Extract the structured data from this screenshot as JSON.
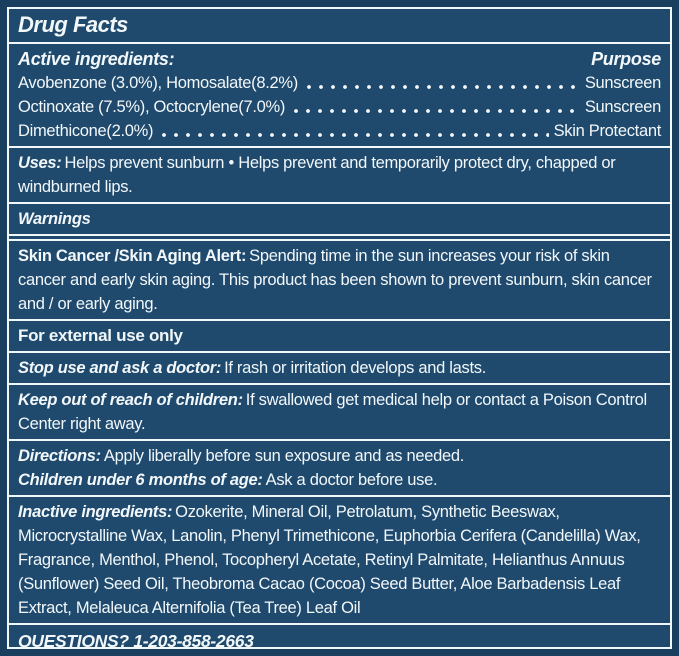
{
  "label": {
    "title": "Drug Facts",
    "active": {
      "header": "Active ingredients:",
      "purpose_header": "Purpose",
      "rows": [
        {
          "ingredient": "Avobenzone (3.0%), Homosalate(8.2%)",
          "purpose": "Sunscreen"
        },
        {
          "ingredient": "Octinoxate (7.5%), Octocrylene(7.0%)",
          "purpose": "Sunscreen"
        },
        {
          "ingredient": "Dimethicone(2.0%)",
          "purpose": "Skin Protectant"
        }
      ]
    },
    "uses": {
      "lead": "Uses:",
      "text": "Helps prevent sunburn • Helps prevent and temporarily protect dry, chapped or windburned lips."
    },
    "warnings_header": "Warnings",
    "skin_alert": {
      "lead": "Skin Cancer /Skin Aging Alert:",
      "text": "Spending time in the sun increases your risk of skin cancer and early skin aging. This product has been shown to prevent sunburn, skin cancer and / or early aging."
    },
    "external_use": "For external use only",
    "stop_use": {
      "lead": "Stop use and ask a doctor:",
      "text": "If rash or irritation develops and lasts."
    },
    "keep_out": {
      "lead": "Keep out of reach of children:",
      "text": "If swallowed get medical help or contact a Poison Control Center right away."
    },
    "directions": {
      "lead": "Directions:",
      "text": "Apply liberally before sun exposure and as needed."
    },
    "children": {
      "lead": "Children under 6 months of age:",
      "text": "Ask a doctor before use."
    },
    "inactive": {
      "lead": "Inactive ingredients:",
      "text": "Ozokerite, Mineral Oil, Petrolatum, Synthetic Beeswax, Microcrystalline Wax, Lanolin, Phenyl Trimethicone, Euphorbia Cerifera (Candelilla) Wax, Fragrance, Menthol, Phenol, Tocopheryl Acetate, Retinyl Palmitate, Helianthus Annuus (Sunflower) Seed Oil, Theobroma Cacao (Cocoa) Seed Butter, Aloe Barbadensis Leaf Extract, Melaleuca Alternifolia (Tea Tree) Leaf Oil"
    },
    "questions": "QUESTIONS? 1-203-858-2663",
    "colors": {
      "panel": "#1F4A6D",
      "frame": "#1A3F5E",
      "ink": "#F2F7FA"
    }
  }
}
